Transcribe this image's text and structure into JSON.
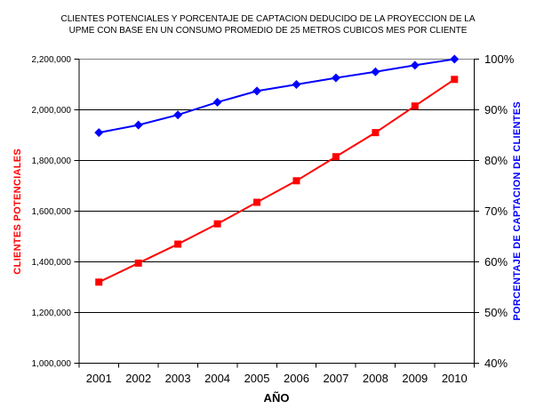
{
  "title": {
    "lines": [
      "CLIENTES POTENCIALES Y PORCENTAJE DE CAPTACION DEDUCIDO DE LA PROYECCION DE LA",
      "UPME CON BASE EN UN CONSUMO PROMEDIO DE 25 METROS CUBICOS MES POR CLIENTE"
    ]
  },
  "chart_data": {
    "type": "line",
    "title": "CLIENTES POTENCIALES Y PORCENTAJE DE CAPTACION DEDUCIDO DE LA PROYECCION DE LA UPME CON BASE EN UN CONSUMO PROMEDIO DE 25 METROS CUBICOS MES POR CLIENTE",
    "categories": [
      "2001",
      "2002",
      "2003",
      "2004",
      "2005",
      "2006",
      "2007",
      "2008",
      "2009",
      "2010"
    ],
    "x_axis_title": "AÑO",
    "grid": true,
    "legend": "none",
    "left_axis": {
      "title": "CLIENTES POTENCIALES",
      "color": "#FF0000",
      "min": 1000000,
      "max": 2200000,
      "tick_step": 200000,
      "tick_labels": [
        "2,200,000",
        "2,000,000",
        "1,800,000",
        "1,600,000",
        "1,400,000",
        "1,200,000",
        "1,000,000"
      ]
    },
    "right_axis": {
      "title": "PORCENTAJE DE CAPTACION DE CLIENTES",
      "color": "#0000FF",
      "min": 40,
      "max": 100,
      "tick_step": 10,
      "tick_labels": [
        "100%",
        "90%",
        "80%",
        "70%",
        "60%",
        "50%",
        "40%"
      ]
    },
    "series": [
      {
        "name": "CLIENTES POTENCIALES",
        "axis": "left",
        "color": "#FF0000",
        "marker": "square",
        "values": [
          1320000,
          1395000,
          1470000,
          1550000,
          1635000,
          1720000,
          1815000,
          1910000,
          2015000,
          2120000
        ]
      },
      {
        "name": "PORCENTAJE DE CAPTACION DE CLIENTES",
        "axis": "right",
        "color": "#0000FF",
        "marker": "diamond",
        "values": [
          85.5,
          87,
          89,
          91.5,
          93.7,
          95,
          96.3,
          97.5,
          98.8,
          100
        ]
      }
    ]
  },
  "colors": {
    "background": "#FFFFFF",
    "gridline": "#000000",
    "axis": "#000000",
    "plot_border_top": "#808080",
    "left_series": "#FF0000",
    "right_series": "#0000FF"
  }
}
